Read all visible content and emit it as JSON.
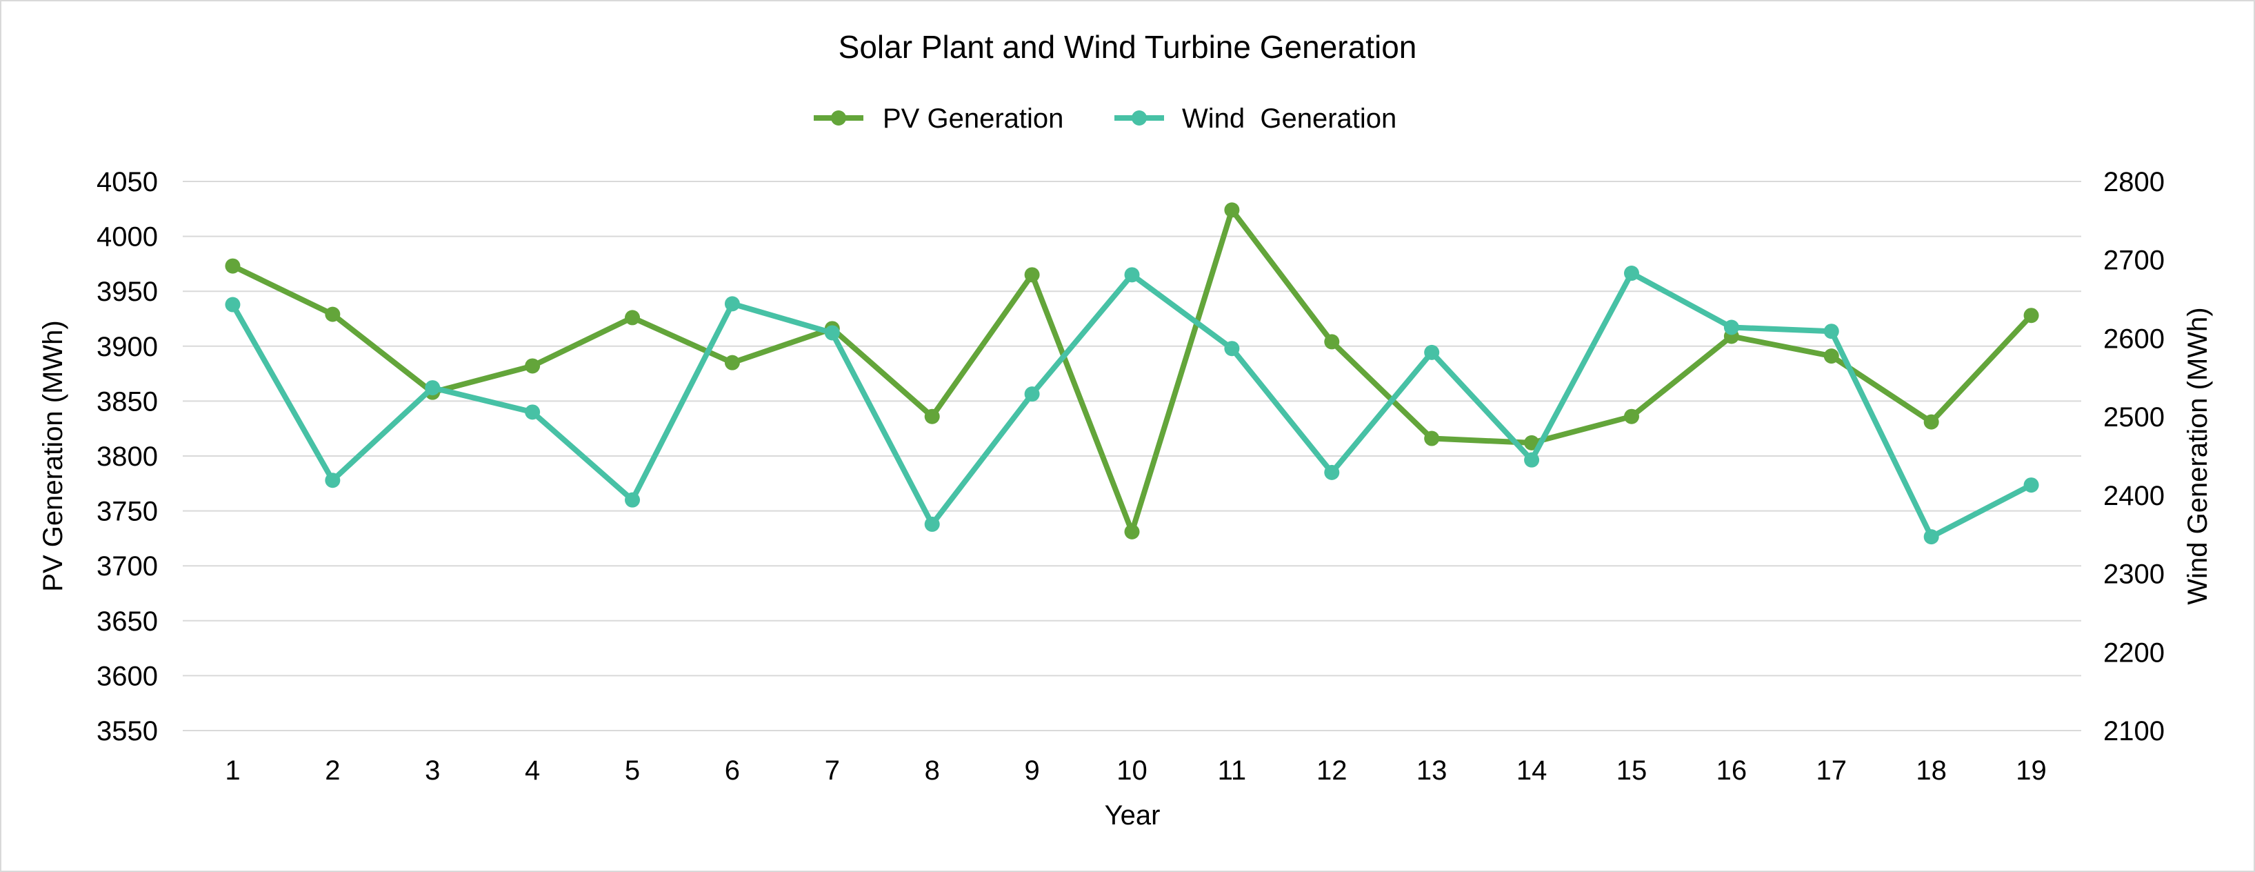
{
  "chart_data": {
    "type": "line",
    "title": "Solar Plant and Wind Turbine Generation",
    "xlabel": "Year",
    "ylabel": "PV Generation (MWh)",
    "y2label": "Wind Generation (MWh)",
    "x": [
      1,
      2,
      3,
      4,
      5,
      6,
      7,
      8,
      9,
      10,
      11,
      12,
      13,
      14,
      15,
      16,
      17,
      18,
      19
    ],
    "ylim": [
      3550,
      4050
    ],
    "yticks": [
      3550,
      3600,
      3650,
      3700,
      3750,
      3800,
      3850,
      3900,
      3950,
      4000,
      4050
    ],
    "y2lim": [
      2100,
      2800
    ],
    "y2ticks": [
      2100,
      2200,
      2300,
      2400,
      2500,
      2600,
      2700,
      2800
    ],
    "grid": true,
    "legend": "top",
    "series": [
      {
        "name": "PV Generation",
        "axis": "left",
        "color": "#63A53A",
        "values": [
          3973,
          3929,
          3858,
          3882,
          3926,
          3885,
          3916,
          3836,
          3965,
          3731,
          4024,
          3904,
          3816,
          3812,
          3836,
          3909,
          3891,
          3831,
          3928
        ]
      },
      {
        "name": "Wind  Generation",
        "axis": "right",
        "color": "#47C1A5",
        "values": [
          2643,
          2419,
          2537,
          2506,
          2394,
          2644,
          2607,
          2363,
          2529,
          2681,
          2587,
          2429,
          2582,
          2445,
          2683,
          2614,
          2609,
          2347,
          2413
        ]
      }
    ]
  }
}
